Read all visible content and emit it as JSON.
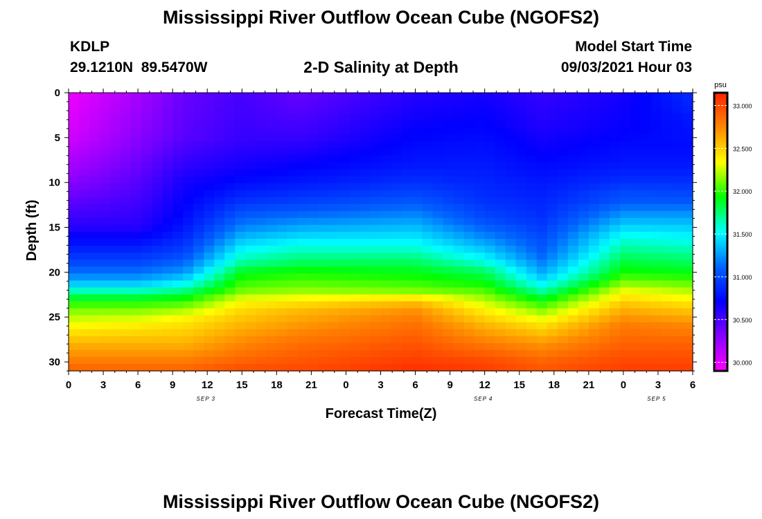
{
  "header": {
    "title": "Mississippi River Outflow Ocean Cube (NGOFS2)",
    "station_id": "KDLP",
    "coordinates": "29.1210N  89.5470W",
    "subtitle": "2-D Salinity at Depth",
    "model_start_label": "Model Start Time",
    "model_start_value": "09/03/2021 Hour 03"
  },
  "footer": {
    "title": "Mississippi River Outflow Ocean Cube (NGOFS2)"
  },
  "chart_data": {
    "type": "heatmap",
    "variable": "Salinity",
    "xlabel": "Forecast Time(Z)",
    "ylabel": "Depth (ft)",
    "x_hours_range": [
      0,
      54
    ],
    "x_tick_labels": [
      "0",
      "3",
      "6",
      "9",
      "12",
      "15",
      "18",
      "21",
      "0",
      "3",
      "6",
      "9",
      "12",
      "15",
      "18",
      "21",
      "0",
      "3",
      "6"
    ],
    "date_labels": [
      {
        "label": "SEP 3",
        "at_hour": 12
      },
      {
        "label": "SEP 4",
        "at_hour": 36
      },
      {
        "label": "SEP 5",
        "at_hour": 51
      }
    ],
    "y_range": [
      0,
      31
    ],
    "y_reversed": true,
    "y_ticks": [
      0,
      5,
      10,
      15,
      20,
      25,
      30
    ],
    "colorbar": {
      "unit": "psu",
      "range": [
        29.9,
        33.15
      ],
      "tick_values": [
        30.0,
        30.5,
        31.0,
        31.5,
        32.0,
        32.5,
        33.0
      ],
      "tick_labels": [
        "30.000",
        "30.500",
        "31.000",
        "31.500",
        "32.000",
        "32.500",
        "33.000"
      ],
      "colors": [
        "#ff00ff",
        "#8800ff",
        "#0000ff",
        "#0066ff",
        "#00ffff",
        "#00ff00",
        "#ffff00",
        "#ff8800",
        "#ff2200"
      ]
    },
    "depth_profiles": [
      {
        "hour": 0,
        "depths": [
          0,
          5,
          10,
          15,
          17,
          19,
          21,
          22,
          23,
          24,
          26,
          28,
          30,
          31
        ],
        "values": [
          29.95,
          30.05,
          30.3,
          30.6,
          30.8,
          31.0,
          31.3,
          31.6,
          31.9,
          32.1,
          32.35,
          32.6,
          32.8,
          32.9
        ]
      },
      {
        "hour": 6,
        "depths": [
          0,
          5,
          10,
          15,
          17,
          19,
          21,
          22,
          23,
          24,
          26,
          28,
          30,
          31
        ],
        "values": [
          30.2,
          30.3,
          30.45,
          30.6,
          30.8,
          31.0,
          31.3,
          31.6,
          31.9,
          32.1,
          32.4,
          32.6,
          32.8,
          32.9
        ]
      },
      {
        "hour": 10,
        "depths": [
          0,
          5,
          10,
          12,
          14,
          16,
          18,
          20,
          21,
          22,
          23,
          24,
          25,
          26,
          28,
          30,
          31
        ],
        "values": [
          30.4,
          30.45,
          30.65,
          30.7,
          30.75,
          30.85,
          31.0,
          31.25,
          31.45,
          31.7,
          31.95,
          32.15,
          32.35,
          32.45,
          32.6,
          32.8,
          32.9
        ]
      },
      {
        "hour": 15,
        "depths": [
          0,
          5,
          8,
          10,
          12,
          13,
          15,
          17,
          19,
          20,
          22,
          23,
          24,
          26,
          28,
          30,
          31
        ],
        "values": [
          30.5,
          30.55,
          30.65,
          30.75,
          30.9,
          31.0,
          31.2,
          31.45,
          31.7,
          31.9,
          32.1,
          32.3,
          32.45,
          32.6,
          32.75,
          32.9,
          33.0
        ]
      },
      {
        "hour": 20,
        "depths": [
          0,
          5,
          8,
          10,
          12,
          13,
          15,
          17,
          19,
          20,
          22,
          23,
          24,
          26,
          28,
          30,
          31
        ],
        "values": [
          30.4,
          30.55,
          30.7,
          30.8,
          30.95,
          31.05,
          31.3,
          31.55,
          31.8,
          31.95,
          32.15,
          32.35,
          32.55,
          32.7,
          32.85,
          32.95,
          33.0
        ]
      },
      {
        "hour": 30,
        "depths": [
          0,
          4,
          8,
          10,
          12,
          13,
          15,
          17,
          19,
          20,
          22,
          23,
          24,
          26,
          28,
          30,
          31
        ],
        "values": [
          30.6,
          30.7,
          30.8,
          30.9,
          31.05,
          31.15,
          31.35,
          31.55,
          31.8,
          31.9,
          32.1,
          32.45,
          32.7,
          32.85,
          32.95,
          33.05,
          33.1
        ]
      },
      {
        "hour": 36,
        "depths": [
          0,
          5,
          10,
          12,
          14,
          16,
          18,
          19,
          20,
          21,
          22,
          23,
          24,
          26,
          28,
          30,
          31
        ],
        "values": [
          30.65,
          30.75,
          30.85,
          30.9,
          31.0,
          31.2,
          31.45,
          31.6,
          31.8,
          31.9,
          32.05,
          32.2,
          32.35,
          32.6,
          32.8,
          33.0,
          33.05
        ]
      },
      {
        "hour": 41,
        "depths": [
          0,
          5,
          10,
          14,
          16,
          18,
          20,
          21,
          22,
          23,
          24,
          26,
          28,
          30,
          31
        ],
        "values": [
          30.55,
          30.65,
          30.8,
          30.9,
          31.0,
          31.1,
          31.3,
          31.45,
          31.65,
          31.9,
          32.1,
          32.45,
          32.7,
          32.9,
          32.95
        ]
      },
      {
        "hour": 48,
        "depths": [
          0,
          4,
          8,
          10,
          11,
          12,
          14,
          16,
          18,
          20,
          21,
          22,
          23,
          24,
          26,
          28,
          30,
          31
        ],
        "values": [
          30.65,
          30.7,
          30.8,
          30.9,
          31.0,
          31.05,
          31.3,
          31.55,
          31.75,
          31.95,
          32.1,
          32.3,
          32.45,
          32.6,
          32.8,
          32.9,
          33.0,
          33.05
        ]
      },
      {
        "hour": 54,
        "depths": [
          0,
          3,
          6,
          8,
          10,
          12,
          14,
          16,
          18,
          20,
          22,
          24,
          26,
          28,
          30,
          31
        ],
        "values": [
          30.9,
          30.8,
          30.75,
          30.8,
          30.9,
          31.05,
          31.3,
          31.5,
          31.7,
          31.9,
          32.2,
          32.5,
          32.75,
          32.9,
          33.0,
          33.05
        ]
      }
    ]
  }
}
